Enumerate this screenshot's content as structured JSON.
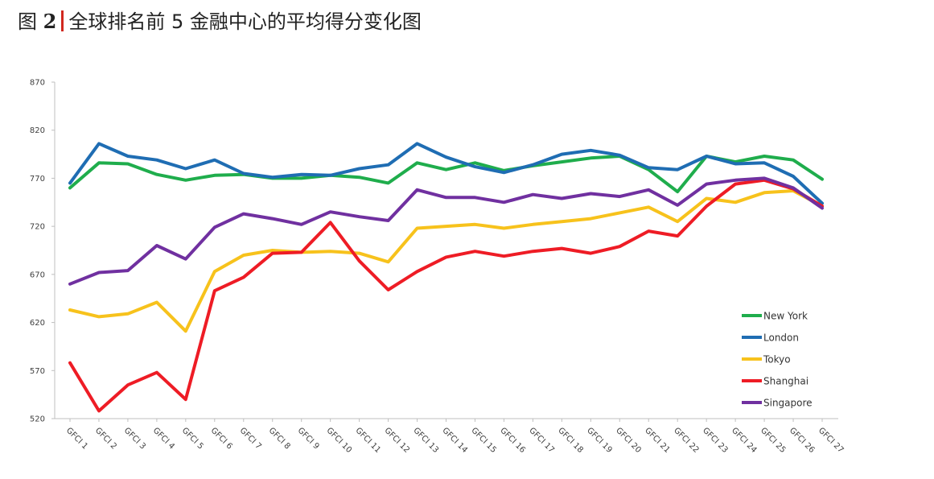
{
  "figure": {
    "prefix": "图",
    "number": "2",
    "caption": "全球排名前 5 金融中心的平均得分变化图"
  },
  "chart_data": {
    "type": "line",
    "x": [
      "GFCI 1",
      "GFCI 2",
      "GFCI 3",
      "GFCI 4",
      "GFCI 5",
      "GFCI 6",
      "GFCI 7",
      "GFCI 8",
      "GFCI 9",
      "GFCI 10",
      "GFCI 11",
      "GFCI 12",
      "GFCI 13",
      "GFCI 14",
      "GFCI 15",
      "GFCI 16",
      "GFCI 17",
      "GFCI 18",
      "GFCI 19",
      "GFCI 20",
      "GFCI 21",
      "GFCI 22",
      "GFCI 23",
      "GFCI 24",
      "GFCI 25",
      "GFCI 26",
      "GFCI 27"
    ],
    "ylim": [
      520,
      870
    ],
    "yticks": [
      520,
      570,
      620,
      670,
      720,
      770,
      820,
      870
    ],
    "grid": false,
    "legend": "right",
    "series": [
      {
        "name": "New York",
        "color": "#1fad4c",
        "values": [
          760,
          786,
          785,
          774,
          768,
          773,
          774,
          770,
          770,
          773,
          771,
          765,
          786,
          779,
          786,
          778,
          783,
          787,
          791,
          793,
          779,
          756,
          793,
          787,
          793,
          789,
          769
        ]
      },
      {
        "name": "London",
        "color": "#1f6db3",
        "values": [
          765,
          806,
          793,
          789,
          780,
          789,
          775,
          771,
          774,
          773,
          780,
          784,
          806,
          792,
          782,
          776,
          784,
          795,
          799,
          794,
          781,
          779,
          793,
          785,
          786,
          772,
          744
        ]
      },
      {
        "name": "Tokyo",
        "color": "#f7c21c",
        "values": [
          633,
          626,
          629,
          641,
          611,
          673,
          690,
          695,
          693,
          694,
          692,
          683,
          718,
          720,
          722,
          718,
          722,
          725,
          728,
          734,
          740,
          725,
          749,
          745,
          755,
          757,
          741
        ]
      },
      {
        "name": "Shanghai",
        "color": "#ee1c25",
        "values": [
          578,
          528,
          555,
          568,
          540,
          653,
          667,
          692,
          693,
          724,
          684,
          654,
          673,
          688,
          694,
          689,
          694,
          697,
          692,
          699,
          715,
          710,
          741,
          764,
          768,
          759,
          741
        ]
      },
      {
        "name": "Singapore",
        "color": "#7030a0",
        "values": [
          660,
          672,
          674,
          700,
          686,
          719,
          733,
          728,
          722,
          735,
          730,
          726,
          758,
          750,
          750,
          745,
          753,
          749,
          754,
          751,
          758,
          742,
          764,
          768,
          770,
          760,
          739
        ]
      }
    ]
  }
}
